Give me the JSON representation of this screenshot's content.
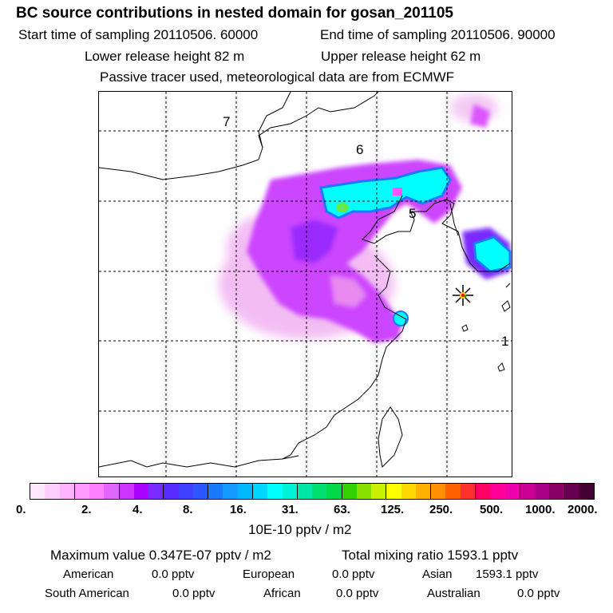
{
  "header": {
    "title": "BC  source contributions in nested domain for gosan_201105",
    "start_time": "Start time of sampling 20110506. 60000",
    "end_time": "End time of sampling 20110506. 90000",
    "lower_height": "Lower release height   82 m",
    "upper_height": "Upper release height   62 m",
    "tracer_note": "Passive tracer used, meteorological data are from ECMWF"
  },
  "map": {
    "region_labels": [
      "7",
      "6",
      "5",
      "1"
    ],
    "receptor_marker": "receptor-star-icon"
  },
  "colorbar": {
    "colors": [
      "#ffe6ff",
      "#ffccff",
      "#ffb3ff",
      "#ff99ff",
      "#ff80ff",
      "#e066ff",
      "#cc33ff",
      "#aa00ff",
      "#7a2bff",
      "#5a2bff",
      "#3f3fff",
      "#2e56ff",
      "#1a7aff",
      "#1399ff",
      "#00b8ff",
      "#00d5ff",
      "#00ffff",
      "#00f0d8",
      "#00e6a8",
      "#00e070",
      "#00d84a",
      "#33d200",
      "#88e000",
      "#c8f000",
      "#ffff00",
      "#ffd800",
      "#ffb000",
      "#ff9000",
      "#ff6000",
      "#ff3030",
      "#ff0066",
      "#ff0099",
      "#ee00aa",
      "#cc0099",
      "#aa0088",
      "#880066",
      "#660050",
      "#440033"
    ],
    "ticks": [
      "0.",
      "2.",
      "4.",
      "8.",
      "16.",
      "31.",
      "63.",
      "125.",
      "250.",
      "500.",
      "1000.",
      "2000."
    ],
    "unit": "10E-10 pptv / m2"
  },
  "footer": {
    "max_value": "Maximum value  0.347E-07 pptv / m2",
    "total_mixing": "Total mixing ratio     1593.1 pptv",
    "american": "American",
    "american_val": "0.0 pptv",
    "european": "European",
    "european_val": "0.0 pptv",
    "asian": "Asian",
    "asian_val": "1593.1 pptv",
    "south_american": "South American",
    "south_american_val": "0.0 pptv",
    "african": "African",
    "african_val": "0.0 pptv",
    "australian": "Australian",
    "australian_val": "0.0 pptv"
  }
}
